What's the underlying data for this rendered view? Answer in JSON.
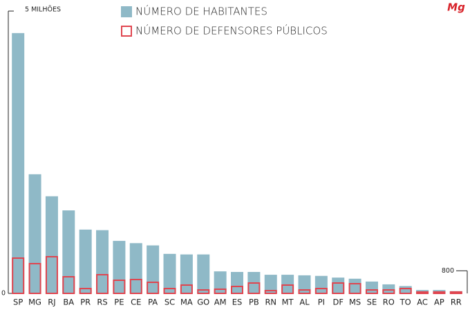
{
  "chart_data": {
    "type": "bar",
    "brand": "Mg",
    "categories": [
      "SP",
      "MG",
      "RJ",
      "BA",
      "PR",
      "RS",
      "PE",
      "CE",
      "PA",
      "SC",
      "MA",
      "GO",
      "AM",
      "ES",
      "PB",
      "RN",
      "MT",
      "AL",
      "PI",
      "DF",
      "MS",
      "SE",
      "RO",
      "TO",
      "AC",
      "AP",
      "RR"
    ],
    "series": [
      {
        "name": "NÚMERO DE HABITANTES",
        "color": "#8fb9c7",
        "style": "filled",
        "values": [
          4610000,
          2110000,
          1720000,
          1470000,
          1130000,
          1120000,
          930000,
          890000,
          850000,
          700000,
          690000,
          690000,
          390000,
          380000,
          380000,
          330000,
          330000,
          320000,
          310000,
          280000,
          260000,
          210000,
          160000,
          130000,
          60000,
          60000,
          40000
        ]
      },
      {
        "name": "NÚMERO DE DEFENSORES PÚBLICOS",
        "color": "#e0454f",
        "style": "outline",
        "axis": "y2",
        "values": [
          1274,
          1078,
          1323,
          613,
          196,
          686,
          490,
          515,
          417,
          196,
          319,
          147,
          172,
          270,
          392,
          123,
          319,
          147,
          196,
          392,
          368,
          147,
          147,
          196,
          74,
          74,
          74
        ]
      }
    ],
    "ylim": [
      0,
      5000000
    ],
    "yticks": [
      0,
      {
        "value": 5000000,
        "label": "5 MILHÕES"
      }
    ],
    "y2lim": [
      0,
      10000
    ],
    "y2ticks": [
      800
    ]
  }
}
